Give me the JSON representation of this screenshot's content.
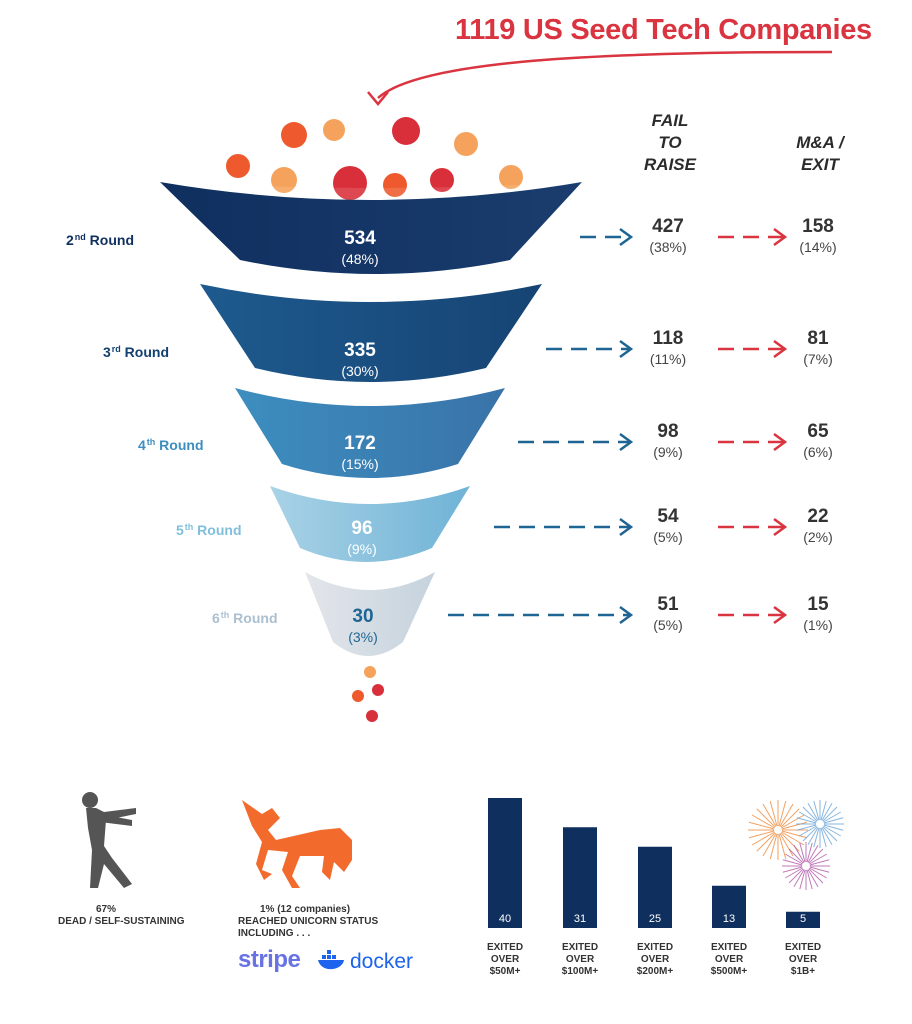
{
  "header": {
    "title": "1119 US Seed Tech Companies"
  },
  "columns": {
    "fail": [
      "FAIL",
      "TO",
      "RAISE"
    ],
    "exit": [
      "M&A /",
      "EXIT"
    ]
  },
  "colors": {
    "title_red": "#d9343f",
    "navy": "#0f2f5f",
    "arrow_blue": "#1f6594",
    "arrow_red": "#d9343f",
    "orange": "#ee5a2d",
    "light_orange": "#f5a35c",
    "crimson": "#d92f3a"
  },
  "chart_data": [
    {
      "type": "funnel",
      "title": "1119 US Seed Tech Companies",
      "stages": [
        {
          "round_num": "2",
          "round_sup": "nd",
          "round_word": "Round",
          "value": 534,
          "value_label": "534",
          "pct_label": "(48%)",
          "fail": 427,
          "fail_label": "427",
          "fail_pct": "(38%)",
          "exit": 158,
          "exit_label": "158",
          "exit_pct": "(14%)"
        },
        {
          "round_num": "3",
          "round_sup": "rd",
          "round_word": "Round",
          "value": 335,
          "value_label": "335",
          "pct_label": "(30%)",
          "fail": 118,
          "fail_label": "118",
          "fail_pct": "(11%)",
          "exit": 81,
          "exit_label": "81",
          "exit_pct": "(7%)"
        },
        {
          "round_num": "4",
          "round_sup": "th",
          "round_word": "Round",
          "value": 172,
          "value_label": "172",
          "pct_label": "(15%)",
          "fail": 98,
          "fail_label": "98",
          "fail_pct": "(9%)",
          "exit": 65,
          "exit_label": "65",
          "exit_pct": "(6%)"
        },
        {
          "round_num": "5",
          "round_sup": "th",
          "round_word": "Round",
          "value": 96,
          "value_label": "96",
          "pct_label": "(9%)",
          "fail": 54,
          "fail_label": "54",
          "fail_pct": "(5%)",
          "exit": 22,
          "exit_label": "22",
          "exit_pct": "(2%)"
        },
        {
          "round_num": "6",
          "round_sup": "th",
          "round_word": "Round",
          "value": 30,
          "value_label": "30",
          "pct_label": "(3%)",
          "fail": 51,
          "fail_label": "51",
          "fail_pct": "(5%)",
          "exit": 15,
          "exit_label": "15",
          "exit_pct": "(1%)"
        }
      ]
    },
    {
      "type": "bar",
      "categories": [
        "EXITED OVER $50M+",
        "EXITED OVER $100M+",
        "EXITED OVER $200M+",
        "EXITED OVER $500M+",
        "EXITED OVER $1B+"
      ],
      "category_lines": [
        [
          "EXITED",
          "OVER",
          "$50M+"
        ],
        [
          "EXITED",
          "OVER",
          "$100M+"
        ],
        [
          "EXITED",
          "OVER",
          "$200M+"
        ],
        [
          "EXITED",
          "OVER",
          "$500M+"
        ],
        [
          "EXITED",
          "OVER",
          "$1B+"
        ]
      ],
      "values": [
        40,
        31,
        25,
        13,
        5
      ],
      "ylim": [
        0,
        40
      ]
    }
  ],
  "bottom": {
    "dead": {
      "pct": "67%",
      "text": "DEAD / SELF-SUSTAINING"
    },
    "unicorn": {
      "line1": "1%  (12 companies)",
      "line2": "REACHED UNICORN STATUS",
      "line3": "INCLUDING . . .",
      "logos": {
        "stripe": "stripe",
        "docker": "docker"
      }
    }
  }
}
